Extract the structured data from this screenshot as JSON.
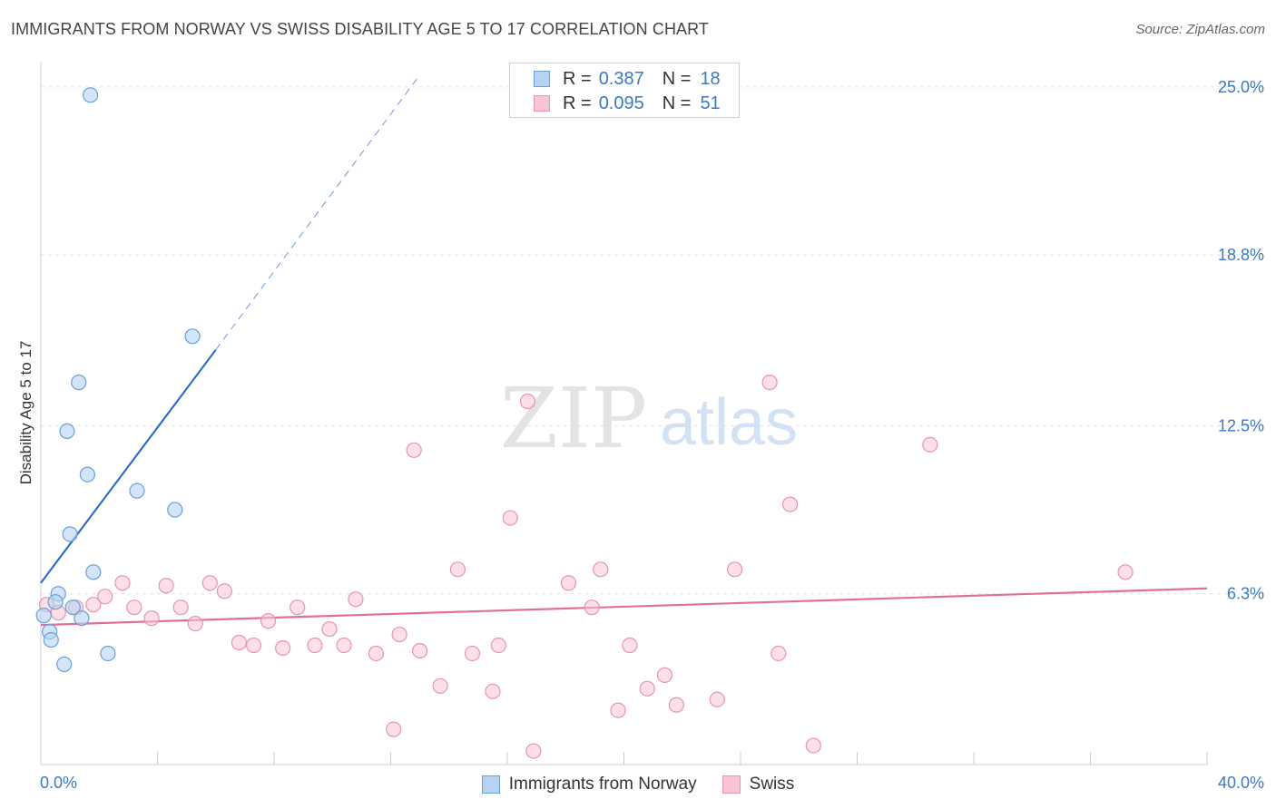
{
  "title": "IMMIGRANTS FROM NORWAY VS SWISS DISABILITY AGE 5 TO 17 CORRELATION CHART",
  "source": "Source: ZipAtlas.com",
  "watermark": {
    "zip": "ZIP",
    "atlas": "atlas"
  },
  "legend": {
    "r_label": "R =",
    "n_label": "N =",
    "norway": {
      "r": "0.387",
      "n": "18",
      "name": "Immigrants from Norway"
    },
    "swiss": {
      "r": "0.095",
      "n": "51",
      "name": "Swiss"
    }
  },
  "colors": {
    "norway_fill": "#b6d3f3",
    "norway_stroke": "#6a9fd8",
    "norway_line": "#2e6fc9",
    "swiss_fill": "#f9c5d4",
    "swiss_stroke": "#e895b0",
    "swiss_line": "#e0709a",
    "axis_label": "#3a78c9",
    "grid": "#dde3ea"
  },
  "chart_data": {
    "type": "scatter",
    "title": "IMMIGRANTS FROM NORWAY VS SWISS DISABILITY AGE 5 TO 17 CORRELATION CHART",
    "xlabel": "",
    "ylabel": "Disability Age 5 to 17",
    "xlim": [
      0,
      40
    ],
    "ylim": [
      0,
      26.2
    ],
    "x_tick_labels": [
      "0.0%",
      "40.0%"
    ],
    "y_ticks": [
      6.3,
      12.5,
      18.8,
      25.0
    ],
    "y_tick_labels": [
      "6.3%",
      "12.5%",
      "18.8%",
      "25.0%"
    ],
    "series": [
      {
        "name": "Immigrants from Norway",
        "points": [
          [
            1.7,
            24.7
          ],
          [
            5.2,
            15.8
          ],
          [
            1.3,
            14.1
          ],
          [
            0.9,
            12.3
          ],
          [
            1.6,
            10.7
          ],
          [
            3.3,
            10.1
          ],
          [
            4.6,
            9.4
          ],
          [
            1.0,
            8.5
          ],
          [
            1.8,
            7.1
          ],
          [
            0.6,
            6.3
          ],
          [
            0.5,
            6.0
          ],
          [
            1.1,
            5.8
          ],
          [
            1.4,
            5.4
          ],
          [
            0.1,
            5.5
          ],
          [
            0.3,
            4.9
          ],
          [
            0.35,
            4.6
          ],
          [
            0.8,
            3.7
          ],
          [
            2.3,
            4.1
          ]
        ],
        "trend": {
          "x0": 0.0,
          "y0": 6.7,
          "x1": 6.0,
          "y1": 15.3,
          "dashed_to_x": 12.9,
          "dashed_to_y": 25.3
        }
      },
      {
        "name": "Swiss",
        "points": [
          [
            0.2,
            5.9
          ],
          [
            0.6,
            5.6
          ],
          [
            1.2,
            5.8
          ],
          [
            1.8,
            5.9
          ],
          [
            2.2,
            6.2
          ],
          [
            2.8,
            6.7
          ],
          [
            3.2,
            5.8
          ],
          [
            3.8,
            5.4
          ],
          [
            4.3,
            6.6
          ],
          [
            4.8,
            5.8
          ],
          [
            5.3,
            5.2
          ],
          [
            5.8,
            6.7
          ],
          [
            6.3,
            6.4
          ],
          [
            6.8,
            4.5
          ],
          [
            7.3,
            4.4
          ],
          [
            7.8,
            5.3
          ],
          [
            8.3,
            4.3
          ],
          [
            8.8,
            5.8
          ],
          [
            9.4,
            4.4
          ],
          [
            9.9,
            5.0
          ],
          [
            10.4,
            4.4
          ],
          [
            10.8,
            6.1
          ],
          [
            11.5,
            4.1
          ],
          [
            12.1,
            1.3
          ],
          [
            12.3,
            4.8
          ],
          [
            12.8,
            11.6
          ],
          [
            13.0,
            4.2
          ],
          [
            13.7,
            2.9
          ],
          [
            14.3,
            7.2
          ],
          [
            14.8,
            4.1
          ],
          [
            15.5,
            2.7
          ],
          [
            15.7,
            4.4
          ],
          [
            16.1,
            9.1
          ],
          [
            16.7,
            13.4
          ],
          [
            16.9,
            0.5
          ],
          [
            18.1,
            6.7
          ],
          [
            18.9,
            5.8
          ],
          [
            19.2,
            7.2
          ],
          [
            19.8,
            2.0
          ],
          [
            20.2,
            4.4
          ],
          [
            20.8,
            2.8
          ],
          [
            21.4,
            3.3
          ],
          [
            21.8,
            2.2
          ],
          [
            23.2,
            2.4
          ],
          [
            23.8,
            7.2
          ],
          [
            25.0,
            14.1
          ],
          [
            25.3,
            4.1
          ],
          [
            25.7,
            9.6
          ],
          [
            26.5,
            0.7
          ],
          [
            30.5,
            11.8
          ],
          [
            37.2,
            7.1
          ]
        ],
        "trend": {
          "x0": 0.0,
          "y0": 5.15,
          "x1": 40.0,
          "y1": 6.5
        }
      }
    ]
  }
}
